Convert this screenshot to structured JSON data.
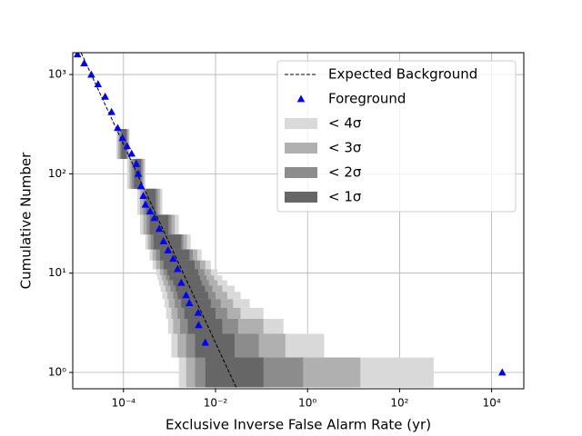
{
  "chart_data": {
    "type": "cumulative-ifar",
    "xlabel": "Exclusive Inverse False Alarm Rate (yr)",
    "ylabel": "Cumulative Number",
    "xscale": "log",
    "yscale": "log",
    "grid": true,
    "legend": "upper right",
    "xlim": [
      7.9e-06,
      50000
    ],
    "ylim": [
      0.685,
      1660
    ],
    "xticks": [
      {
        "value": 0.0001,
        "label": "10⁻⁴"
      },
      {
        "value": 0.01,
        "label": "10⁻²"
      },
      {
        "value": 1,
        "label": "10⁰"
      },
      {
        "value": 100,
        "label": "10²"
      },
      {
        "value": 10000,
        "label": "10⁴"
      }
    ],
    "yticks": [
      {
        "value": 1,
        "label": "10⁰"
      },
      {
        "value": 10,
        "label": "10¹"
      },
      {
        "value": 100,
        "label": "10²"
      },
      {
        "value": 1000,
        "label": "10³"
      }
    ],
    "series": [
      {
        "name": "Expected Background",
        "kind": "line",
        "color": "#000000",
        "x": [
          1.2e-05,
          0.029
        ],
        "values": [
          1660,
          0.685
        ]
      },
      {
        "name": "Foreground",
        "kind": "marker",
        "color": "#0000ff",
        "x": [
          1e-05,
          1.4e-05,
          2e-05,
          2.8e-05,
          4e-05,
          5.5e-05,
          7.5e-05,
          9.5e-05,
          0.00012,
          0.00015,
          0.00019,
          0.00021,
          0.00024,
          0.00027,
          0.0003,
          0.00038,
          0.00047,
          0.0006,
          0.00074,
          0.00093,
          0.0012,
          0.0015,
          0.0018,
          0.0023,
          0.0027,
          0.0042,
          0.0043,
          0.006,
          17000
        ],
        "values": [
          1600,
          1300,
          1000,
          800,
          600,
          420,
          290,
          230,
          190,
          160,
          126,
          100,
          75,
          60,
          49,
          42,
          36,
          28,
          21,
          17,
          14,
          11,
          8,
          6,
          5,
          4,
          3,
          2,
          1
        ]
      }
    ],
    "bands": {
      "levels": [
        1,
        2,
        3,
        4,
        5,
        6,
        7,
        8,
        9,
        10,
        12,
        15,
        20,
        30,
        50,
        100,
        200
      ],
      "series": [
        {
          "name": "< 4σ",
          "color": "#d9d9d9",
          "lower": [
            0.0016,
            0.0011,
            0.00093,
            0.00085,
            0.00078,
            0.0007,
            0.00064,
            0.00059,
            0.00055,
            0.00051,
            0.00043,
            0.00037,
            0.0003,
            0.00023,
            0.0002,
            0.00012,
            7e-05
          ],
          "upper": [
            550,
            2.3,
            0.3,
            0.11,
            0.055,
            0.035,
            0.026,
            0.018,
            0.014,
            0.011,
            0.0079,
            0.005,
            0.0029,
            0.0016,
            0.0007,
            0.0003,
            0.000135
          ]
        },
        {
          "name": "< 3σ",
          "color": "#b0b0b0",
          "lower": [
            0.0023,
            0.0015,
            0.0012,
            0.0011,
            0.00097,
            0.0009,
            0.00082,
            0.00074,
            0.00068,
            0.00062,
            0.00051,
            0.00043,
            0.00034,
            0.00027,
            0.00023,
            0.000135,
            7.6e-05
          ],
          "upper": [
            14,
            0.33,
            0.11,
            0.035,
            0.024,
            0.018,
            0.014,
            0.011,
            0.0093,
            0.0079,
            0.006,
            0.004,
            0.0024,
            0.0013,
            0.00063,
            0.00028,
            0.00013
          ]
        },
        {
          "name": "< 2σ",
          "color": "#8c8c8c",
          "lower": [
            0.0036,
            0.0023,
            0.0017,
            0.0015,
            0.0013,
            0.0012,
            0.00105,
            0.00093,
            0.00083,
            0.00074,
            0.00062,
            0.00051,
            0.00039,
            0.00032,
            0.00027,
            0.00015,
            8.3e-05
          ],
          "upper": [
            0.8,
            0.087,
            0.031,
            0.018,
            0.013,
            0.01,
            0.0085,
            0.0072,
            0.0064,
            0.0057,
            0.0046,
            0.0032,
            0.002,
            0.0011,
            0.00056,
            0.00026,
            0.000122
          ]
        },
        {
          "name": "< 1σ",
          "color": "#666666",
          "lower": [
            0.006,
            0.0036,
            0.0025,
            0.0021,
            0.0018,
            0.0015,
            0.00135,
            0.0012,
            0.001,
            0.00089,
            0.00074,
            0.00062,
            0.00045,
            0.00037,
            0.00031,
            0.00017,
            9e-05
          ],
          "upper": [
            0.11,
            0.026,
            0.014,
            0.01,
            0.0079,
            0.0069,
            0.0059,
            0.005,
            0.0046,
            0.0042,
            0.0035,
            0.0027,
            0.0018,
            0.00095,
            0.0005,
            0.00024,
            0.000115
          ]
        }
      ]
    }
  }
}
